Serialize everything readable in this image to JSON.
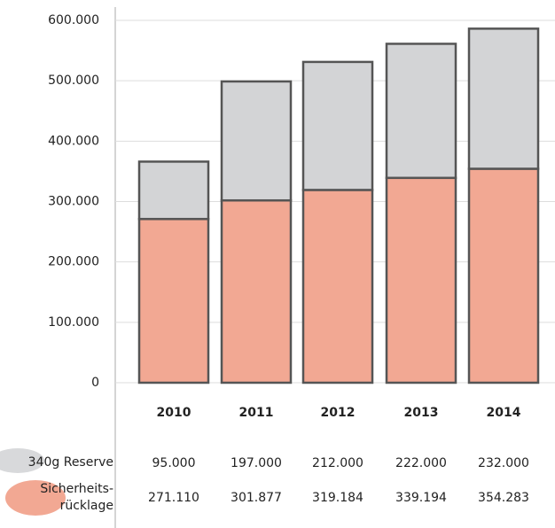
{
  "chart_data": {
    "type": "bar",
    "stacked": true,
    "categories": [
      "2010",
      "2011",
      "2012",
      "2013",
      "2014"
    ],
    "series": [
      {
        "name": "340g Reserve",
        "color": "#d3d4d6",
        "values": [
          95000,
          197000,
          212000,
          222000,
          232000
        ],
        "value_labels": [
          "95.000",
          "197.000",
          "212.000",
          "222.000",
          "232.000"
        ]
      },
      {
        "name": "Sicherheits-\nrücklage",
        "color": "#f2a893",
        "values": [
          271110,
          301877,
          319184,
          339194,
          354283
        ],
        "value_labels": [
          "271.110",
          "301.877",
          "319.184",
          "339.194",
          "354.283"
        ]
      }
    ],
    "ylim": [
      0,
      600000
    ],
    "yticks": [
      0,
      {
        "value": 100000,
        "label": "100.000"
      },
      {
        "value": 200000,
        "label": "200.000"
      },
      {
        "value": 300000,
        "label": "300.000"
      },
      {
        "value": 400000,
        "label": "400.000"
      },
      {
        "value": 500000,
        "label": "500.000"
      },
      {
        "value": 600000,
        "label": "600.000"
      }
    ],
    "grid": true
  }
}
